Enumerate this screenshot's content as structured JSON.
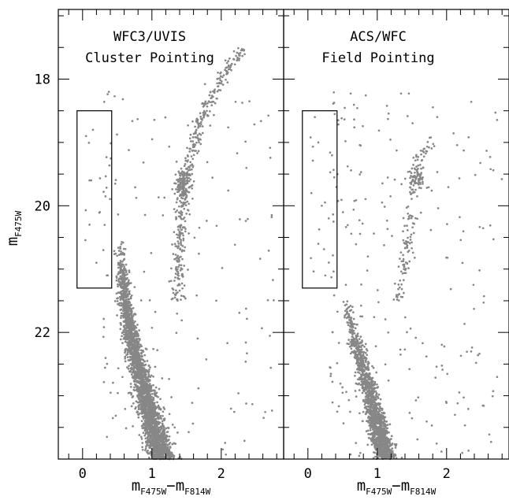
{
  "chart_data": [
    {
      "type": "scatter",
      "panel": "left",
      "annotation": [
        "WFC3/UVIS",
        "Cluster Pointing"
      ],
      "xlabel": {
        "main": "m",
        "sub1": "F475W",
        "mid": "−m",
        "sub2": "F814W"
      },
      "ylabel": {
        "main": "m",
        "sub": "F475W"
      },
      "xlim": [
        -0.35,
        2.9
      ],
      "ylim": [
        24.0,
        16.9
      ],
      "y_inverted": true,
      "x_ticks": [
        0,
        1,
        2
      ],
      "y_ticks": [
        18,
        20,
        22
      ],
      "grid": false,
      "point_color": "#878787",
      "selection_box": {
        "x": [
          -0.08,
          0.42
        ],
        "y": [
          18.5,
          21.3
        ]
      },
      "features": {
        "main_sequence": [
          [
            0.55,
            20.6
          ],
          [
            0.6,
            21.5
          ],
          [
            0.75,
            22.3
          ],
          [
            0.9,
            23.0
          ],
          [
            1.05,
            23.6
          ],
          [
            1.15,
            24.0
          ]
        ],
        "red_giant_branch": [
          [
            1.35,
            21.5
          ],
          [
            1.4,
            20.7
          ],
          [
            1.45,
            20.0
          ],
          [
            1.55,
            19.2
          ],
          [
            1.75,
            18.5
          ],
          [
            2.0,
            18.0
          ],
          [
            2.3,
            17.5
          ]
        ],
        "red_clump": [
          1.45,
          19.65
        ],
        "blue_stragglers_in_box": [
          [
            0.05,
            18.9
          ],
          [
            0.15,
            18.8
          ],
          [
            0.1,
            19.6
          ],
          [
            0.25,
            20.1
          ],
          [
            0.3,
            20.7
          ],
          [
            0.35,
            21.1
          ],
          [
            0.1,
            20.3
          ],
          [
            0.2,
            20.9
          ]
        ]
      }
    },
    {
      "type": "scatter",
      "panel": "right",
      "annotation": [
        "ACS/WFC",
        "Field Pointing"
      ],
      "xlabel": {
        "main": "m",
        "sub1": "F475W",
        "mid": "−m",
        "sub2": "F814W"
      },
      "xlim": [
        -0.35,
        2.9
      ],
      "ylim": [
        24.0,
        16.9
      ],
      "y_inverted": true,
      "x_ticks": [
        0,
        1,
        2
      ],
      "y_ticks": [
        18,
        20,
        22
      ],
      "grid": false,
      "point_color": "#878787",
      "selection_box": {
        "x": [
          -0.08,
          0.42
        ],
        "y": [
          18.5,
          21.3
        ]
      },
      "features": {
        "main_sequence": [
          [
            0.5,
            21.3
          ],
          [
            0.65,
            22.0
          ],
          [
            0.8,
            22.6
          ],
          [
            0.95,
            23.2
          ],
          [
            1.05,
            23.7
          ],
          [
            1.15,
            24.0
          ]
        ],
        "red_giant_branch": [
          [
            1.3,
            21.5
          ],
          [
            1.4,
            20.8
          ],
          [
            1.5,
            20.0
          ],
          [
            1.6,
            19.3
          ],
          [
            1.8,
            18.9
          ]
        ],
        "red_clump": [
          1.55,
          19.55
        ],
        "blue_stragglers_in_box": [
          [
            0.1,
            18.6
          ],
          [
            0.15,
            19.0
          ],
          [
            0.05,
            19.8
          ],
          [
            0.2,
            20.0
          ],
          [
            0.3,
            20.2
          ],
          [
            0.25,
            21.1
          ],
          [
            0.15,
            20.6
          ]
        ]
      }
    }
  ]
}
